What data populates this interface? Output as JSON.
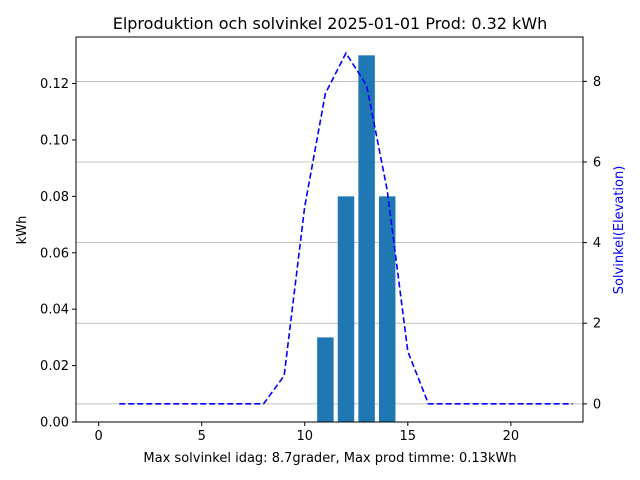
{
  "chart_data": {
    "type": "bar",
    "title": "Elproduktion och solvinkel 2025-01-01 Prod: 0.32 kWh",
    "xlabel": "Max solvinkel idag: 8.7grader, Max prod timme: 0.13kWh",
    "ylabel": "kWh",
    "ylabel_right": "Solvinkel(Elevation)",
    "xlim": [
      -1.1,
      23.5
    ],
    "ylim": [
      0,
      0.1365
    ],
    "ylim_right": [
      -0.45,
      9.1
    ],
    "x_ticks": [
      0,
      5,
      10,
      15,
      20
    ],
    "y_ticks": [
      0.0,
      0.02,
      0.04,
      0.06,
      0.08,
      0.1,
      0.12
    ],
    "y_ticks_right": [
      0,
      2,
      4,
      6,
      8
    ],
    "grid": "right-axis horizontal",
    "bars": {
      "color": "#1f77b4",
      "x": [
        11,
        12,
        13,
        14
      ],
      "values": [
        0.03,
        0.08,
        0.13,
        0.08
      ]
    },
    "series": [
      {
        "axis": "right",
        "style": "dashed",
        "color": "#0000ff",
        "x": [
          1,
          2,
          3,
          4,
          5,
          6,
          7,
          8,
          9,
          10,
          11,
          12,
          13,
          14,
          15,
          16,
          17,
          18,
          19,
          20,
          21,
          22,
          23
        ],
        "values": [
          0,
          0,
          0,
          0,
          0,
          0,
          0,
          0,
          0.7,
          4.9,
          7.7,
          8.7,
          7.9,
          5.3,
          1.3,
          0,
          0,
          0,
          0,
          0,
          0,
          0,
          0
        ]
      }
    ]
  }
}
